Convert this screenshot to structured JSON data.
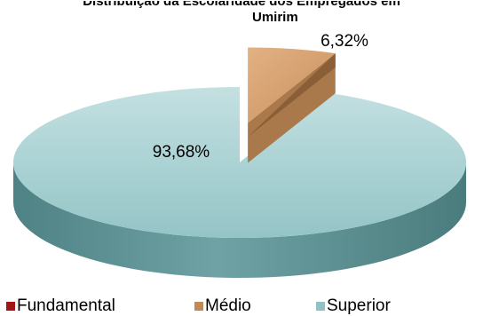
{
  "title": "Distribuição da Escolaridade dos Empregados em",
  "subtitle": "Umirim",
  "chart_data": {
    "type": "pie",
    "title": "Distribuição da Escolaridade dos Empregados em Umirim",
    "categories": [
      "Fundamental",
      "Médio",
      "Superior"
    ],
    "values": [
      0,
      6.32,
      93.68
    ],
    "data_labels": [
      "",
      "6,32%",
      "93,68%"
    ],
    "colors": [
      "#a31515",
      "#c08a55",
      "#8ec2c4"
    ],
    "legend_position": "bottom",
    "style": "3d-exploded"
  },
  "legend": [
    {
      "label": "Fundamental",
      "color": "#a31515"
    },
    {
      "label": "Médio",
      "color": "#c08a55"
    },
    {
      "label": "Superior",
      "color": "#8ec2c4"
    }
  ]
}
